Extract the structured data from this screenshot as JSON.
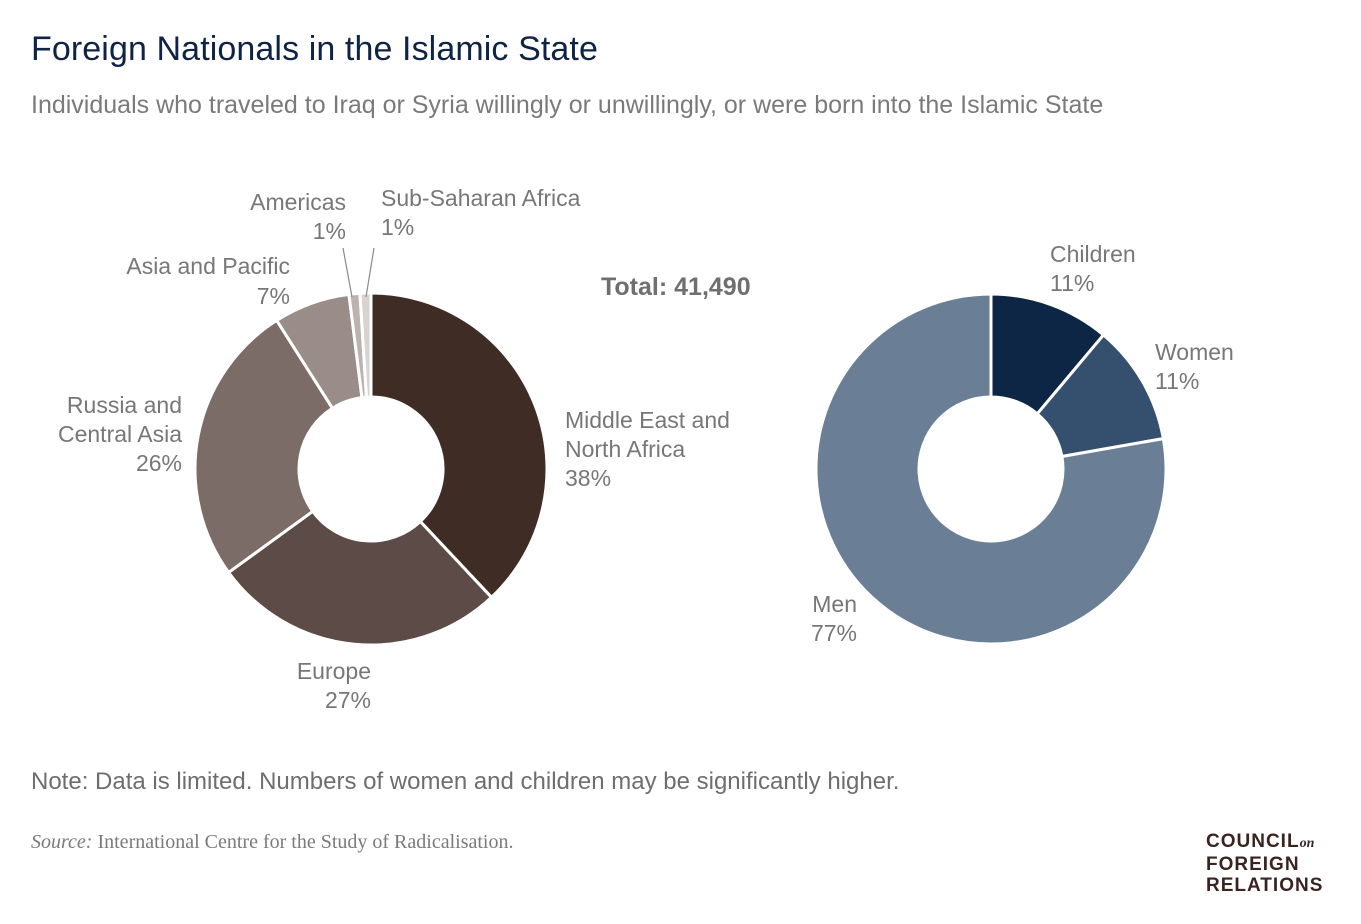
{
  "title": "Foreign Nationals in the Islamic State",
  "subtitle": "Individuals who traveled to Iraq or Syria willingly or unwillingly, or were born into the Islamic State",
  "total_label": "Total: 41,490",
  "note": "Note: Data is limited. Numbers of women and children may be significantly higher.",
  "source": {
    "prefix": "Source:",
    "text": "International Centre for the Study of Radicalisation."
  },
  "logo": {
    "line1": "COUNCIL",
    "on": "on",
    "line2": "FOREIGN",
    "line3": "RELATIONS"
  },
  "chart_data": [
    {
      "type": "pie",
      "variant": "donut",
      "categories": [
        "Middle East and North Africa",
        "Europe",
        "Russia and Central Asia",
        "Asia and Pacific",
        "Americas",
        "Sub-Saharan Africa"
      ],
      "values": [
        38,
        27,
        26,
        7,
        1,
        1
      ],
      "labels": [
        "38%",
        "27%",
        "26%",
        "7%",
        "1%",
        "1%"
      ],
      "colors": [
        "#3f2c24",
        "#5c4b47",
        "#7b6c68",
        "#9a8d89",
        "#bcb3b0",
        "#d8d2d0"
      ]
    },
    {
      "type": "pie",
      "variant": "donut",
      "categories": [
        "Children",
        "Women",
        "Men"
      ],
      "values": [
        11,
        11,
        77
      ],
      "labels": [
        "11%",
        "11%",
        "77%"
      ],
      "colors": [
        "#0d2645",
        "#34506e",
        "#6a7f95"
      ]
    }
  ]
}
